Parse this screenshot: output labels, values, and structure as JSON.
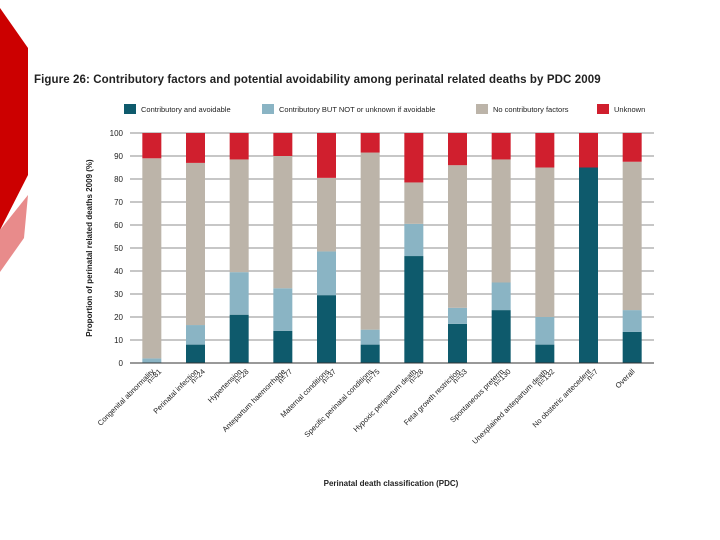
{
  "figure": {
    "title": "Figure 26: Contributory factors and potential avoidability among perinatal related deaths by PDC 2009"
  },
  "colors": {
    "contributory_avoidable": "#0e5a6c",
    "contributory_not": "#8ab4c4",
    "no_contributory": "#bcb4a9",
    "unknown": "#d01f2e",
    "deco_dark": "#cc0000",
    "deco_light": "#e88b8b"
  },
  "chart_data": {
    "type": "bar",
    "stacked": true,
    "xlabel": "Perinatal death classification (PDC)",
    "ylabel": "Proportion of perinatal related deaths 2009 (%)",
    "ylim": [
      0,
      100
    ],
    "yticks": [
      0,
      10,
      20,
      30,
      40,
      50,
      60,
      70,
      80,
      90,
      100
    ],
    "grid": true,
    "legend_position": "top",
    "categories": [
      {
        "name": "Congenital abnormality",
        "n": "n=81"
      },
      {
        "name": "Perinatal infection",
        "n": "n=24"
      },
      {
        "name": "Hypertension",
        "n": "n=28"
      },
      {
        "name": "Antepartum haemorrhage",
        "n": "n=77"
      },
      {
        "name": "Maternal conditions",
        "n": "n=37"
      },
      {
        "name": "Specific perinatal conditions",
        "n": "n=75"
      },
      {
        "name": "Hypoxic peripartum death",
        "n": "n=28"
      },
      {
        "name": "Fetal growth restriction",
        "n": "n=53"
      },
      {
        "name": "Spontaneous preterm",
        "n": "n=130"
      },
      {
        "name": "Unexplained antepartum death",
        "n": "n=132"
      },
      {
        "name": "No obstetric antecedent",
        "n": "n=7"
      },
      {
        "name": "Overall",
        "n": ""
      }
    ],
    "series": [
      {
        "name": "Contributory and avoidable",
        "color_key": "contributory_avoidable",
        "values": [
          0,
          8,
          21,
          14,
          29.5,
          8,
          46.5,
          17,
          23,
          8,
          85,
          13.5
        ]
      },
      {
        "name": "Contributory BUT NOT or unknown if avoidable",
        "color_key": "contributory_not",
        "values": [
          2,
          8.5,
          18.5,
          18.5,
          19,
          6.5,
          14,
          7,
          12,
          12,
          0,
          9.5
        ]
      },
      {
        "name": "No contributory factors",
        "color_key": "no_contributory",
        "values": [
          87,
          70.5,
          49,
          57.5,
          32,
          77,
          18,
          62,
          53.5,
          65,
          0,
          64.5
        ]
      },
      {
        "name": "Unknown",
        "color_key": "unknown",
        "values": [
          11,
          13,
          11.5,
          10,
          19.5,
          8.5,
          21.5,
          14,
          11.5,
          15,
          15,
          12.5
        ]
      }
    ]
  }
}
